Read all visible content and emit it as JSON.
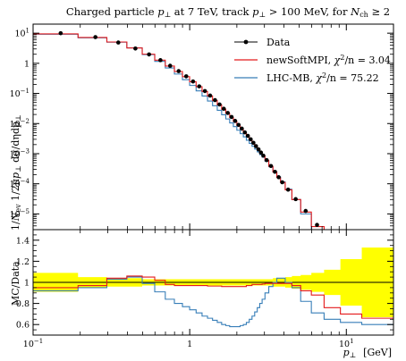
{
  "chart_data": [
    {
      "type": "line",
      "panel": "main",
      "title": "Charged particle p⊥ at 7 TeV, track p⊥ > 100 MeV, for Nch ≥ 2",
      "title_parts": {
        "prefix": "Charged particle ",
        "p": "p",
        "perp": "⊥",
        "at": " at 7 TeV, track ",
        "cut": " > 100 MeV, for ",
        "n": "N",
        "ch": "ch",
        "ge": " ≥ 2"
      },
      "ylabel": "1/Nev 1/2πp⊥ dσ/dηdp⊥",
      "ylabel_parts": {
        "one": "1/",
        "n": "N",
        "ev": "ev",
        "mid": " 1/2π",
        "p": "p",
        "perp": "⊥",
        "tail": " dσ/dηdp",
        "perp2": "⊥"
      },
      "xscale": "log",
      "yscale": "log",
      "xlim": [
        0.1,
        20
      ],
      "ylim": [
        3e-06,
        20
      ],
      "y_tick_labels": [
        {
          "v": 10,
          "base": "10",
          "exp": "1"
        },
        {
          "v": 1,
          "base": "1",
          "exp": ""
        },
        {
          "v": 0.1,
          "base": "10",
          "exp": "−1"
        },
        {
          "v": 0.01,
          "base": "10",
          "exp": "−2"
        },
        {
          "v": 0.001,
          "base": "10",
          "exp": "−3"
        },
        {
          "v": 0.0001,
          "base": "10",
          "exp": "−4"
        },
        {
          "v": 1e-05,
          "base": "10",
          "exp": "−5"
        }
      ],
      "legend_position": "top-right",
      "x": [
        0.15,
        0.25,
        0.35,
        0.45,
        0.55,
        0.65,
        0.75,
        0.85,
        0.95,
        1.05,
        1.15,
        1.25,
        1.35,
        1.45,
        1.55,
        1.65,
        1.75,
        1.85,
        1.95,
        2.05,
        2.15,
        2.25,
        2.35,
        2.45,
        2.55,
        2.65,
        2.75,
        2.85,
        2.95,
        3.1,
        3.3,
        3.5,
        3.7,
        3.9,
        4.25,
        4.75,
        5.5,
        6.5,
        8.0
      ],
      "series": [
        {
          "name": "Data",
          "role": "data",
          "color": "#000000",
          "values": [
            10.0,
            7.4,
            4.9,
            3.1,
            1.97,
            1.27,
            0.83,
            0.55,
            0.37,
            0.25,
            0.172,
            0.12,
            0.085,
            0.06,
            0.043,
            0.031,
            0.0225,
            0.0165,
            0.0122,
            0.009,
            0.0068,
            0.0051,
            0.0039,
            0.003,
            0.0023,
            0.00178,
            0.00139,
            0.00109,
            0.00086,
            0.00061,
            0.00039,
            0.00025,
            0.000165,
            0.000112,
            6.4e-05,
            3.1e-05,
            1.25e-05,
            4.3e-06,
            2.5e-06
          ]
        },
        {
          "name": "newSoftMPI, χ²/n = 3.04",
          "name_main": "newSoftMPI, ",
          "chi": "χ",
          "chi_sup": "2",
          "chi_rest": "/n = 3.04",
          "role": "mc",
          "color": "#e41a1c",
          "values": [
            9.5,
            7.2,
            5.1,
            3.24,
            2.01,
            1.27,
            0.81,
            0.534,
            0.359,
            0.243,
            0.167,
            0.116,
            0.082,
            0.058,
            0.0416,
            0.0298,
            0.0216,
            0.0158,
            0.0117,
            0.0086,
            0.0065,
            0.0049,
            0.0038,
            0.0029,
            0.00225,
            0.00174,
            0.00136,
            0.00106,
            0.00084,
            0.0006,
            0.00038,
            0.000247,
            0.000163,
            0.000111,
            6.3e-05,
            3e-05,
            1.15e-05,
            3.8e-06,
            1.9e-06
          ]
        },
        {
          "name": "LHC-MB, χ²/n = 75.22",
          "name_main": "LHC-MB, ",
          "chi": "χ",
          "chi_sup": "2",
          "chi_rest": "/n = 75.22",
          "role": "mc",
          "color": "#377eb8",
          "values": [
            9.2,
            7.0,
            5.05,
            3.25,
            1.95,
            1.16,
            0.7,
            0.44,
            0.285,
            0.184,
            0.122,
            0.082,
            0.056,
            0.039,
            0.0275,
            0.0196,
            0.0142,
            0.0105,
            0.0079,
            0.006,
            0.0046,
            0.0036,
            0.0028,
            0.0022,
            0.00176,
            0.00142,
            0.00115,
            0.00093,
            0.00076,
            0.00056,
            0.00037,
            0.00025,
            0.00017,
            0.000116,
            6.6e-05,
            3e-05,
            1e-05,
            3e-06,
            1.3e-06
          ]
        }
      ]
    },
    {
      "type": "line",
      "panel": "ratio",
      "ylabel": "MC/Data",
      "xlabel": "p⊥ [GeV]",
      "xlabel_parts": {
        "p": "p",
        "perp": "⊥",
        "unit": "[GeV]"
      },
      "xscale": "log",
      "xlim": [
        0.1,
        20
      ],
      "ylim": [
        0.5,
        1.5
      ],
      "y_tick_labels": [
        "0.6",
        "0.8",
        "1",
        "1.2",
        "1.4"
      ],
      "y_ticks": [
        0.6,
        0.8,
        1.0,
        1.2,
        1.4
      ],
      "x_tick_labels": [
        {
          "v": 0.1,
          "base": "10",
          "exp": "−1"
        },
        {
          "v": 1,
          "base": "1",
          "exp": ""
        },
        {
          "v": 10,
          "base": "10",
          "exp": "1"
        }
      ],
      "x": [
        0.15,
        0.25,
        0.35,
        0.45,
        0.55,
        0.65,
        0.75,
        0.85,
        0.95,
        1.05,
        1.15,
        1.25,
        1.35,
        1.45,
        1.55,
        1.65,
        1.75,
        1.85,
        1.95,
        2.05,
        2.15,
        2.25,
        2.35,
        2.45,
        2.55,
        2.65,
        2.75,
        2.85,
        2.95,
        3.1,
        3.3,
        3.5,
        3.7,
        3.9,
        4.25,
        4.75,
        5.5,
        6.5,
        8.0,
        10.5,
        15.0
      ],
      "band_color": "#ffff00",
      "band_halfwidth": [
        0.09,
        0.05,
        0.04,
        0.04,
        0.03,
        0.03,
        0.03,
        0.03,
        0.03,
        0.03,
        0.03,
        0.03,
        0.03,
        0.03,
        0.03,
        0.03,
        0.03,
        0.03,
        0.03,
        0.03,
        0.03,
        0.03,
        0.03,
        0.03,
        0.03,
        0.03,
        0.03,
        0.03,
        0.03,
        0.03,
        0.03,
        0.04,
        0.04,
        0.04,
        0.05,
        0.06,
        0.07,
        0.09,
        0.12,
        0.22,
        0.33
      ],
      "series": [
        {
          "name": "newSoftMPI",
          "color": "#e41a1c",
          "values": [
            0.95,
            0.97,
            1.04,
            1.06,
            1.05,
            1.02,
            0.98,
            0.97,
            0.97,
            0.97,
            0.97,
            0.97,
            0.965,
            0.965,
            0.965,
            0.96,
            0.96,
            0.96,
            0.96,
            0.96,
            0.96,
            0.96,
            0.97,
            0.97,
            0.98,
            0.98,
            0.98,
            0.98,
            0.985,
            0.99,
            0.99,
            0.99,
            0.99,
            0.99,
            0.99,
            0.97,
            0.92,
            0.88,
            0.76,
            0.7,
            0.66
          ]
        },
        {
          "name": "LHC-MB",
          "color": "#377eb8",
          "values": [
            0.92,
            0.95,
            1.03,
            1.05,
            0.99,
            0.91,
            0.84,
            0.8,
            0.77,
            0.74,
            0.71,
            0.68,
            0.66,
            0.64,
            0.62,
            0.6,
            0.59,
            0.58,
            0.58,
            0.58,
            0.59,
            0.6,
            0.62,
            0.65,
            0.68,
            0.72,
            0.76,
            0.8,
            0.84,
            0.9,
            0.96,
            1.0,
            1.04,
            1.04,
            1.0,
            0.95,
            0.82,
            0.71,
            0.65,
            0.62,
            0.6
          ]
        }
      ]
    }
  ]
}
